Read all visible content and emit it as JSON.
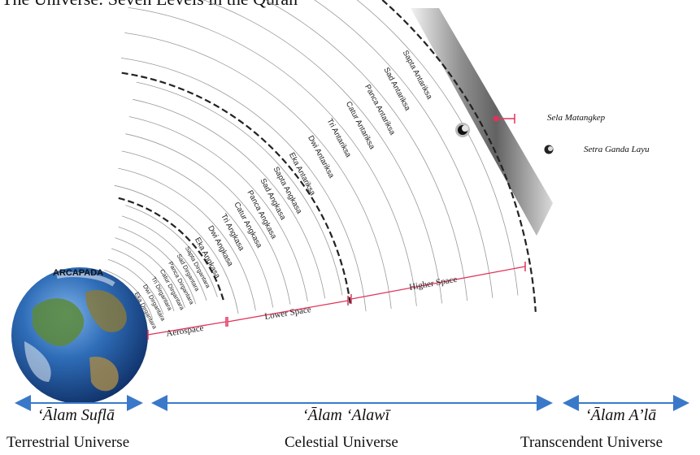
{
  "header": {
    "title_partial": "The Universe: Seven Levels in the Quran"
  },
  "earth": {
    "label": "ARCAPADA"
  },
  "layers": {
    "aerospace": [
      "Eka Dirgantara",
      "Dwi Dirgantara",
      "Tri Dirgantara",
      "Catur Dirgantara",
      "Panca Dirgantara",
      "Sad Dirgantara",
      "Sapta Dirgantara"
    ],
    "lower": [
      "Eka Angkasa",
      "Dwi Angkasa",
      "Tri Angkasa",
      "Catur Angkasa",
      "Panca Angkasa",
      "Sad Angkasa",
      "Sapta Angkasa"
    ],
    "higher": [
      "Eka Antariksa",
      "Dwi Antariksa",
      "Tri Antariksa",
      "Catur Antariksa",
      "Panca Antariksa",
      "Sad Antariksa",
      "Sapta Antariksa"
    ]
  },
  "spans": {
    "aerospace": "Aerospace",
    "lower": "Lower Space",
    "higher": "Higher Space"
  },
  "markers": {
    "sela": "Sela Matangkep",
    "setra": "Setra Ganda Layu"
  },
  "realms": [
    {
      "name": "‘Ālam Suflā",
      "english": "Terrestrial Universe"
    },
    {
      "name": "‘Ālam ‘Alawī",
      "english": "Celestial Universe"
    },
    {
      "name": "‘Ālam A’lā",
      "english": "Transcendent Universe"
    }
  ],
  "colors": {
    "arrow": "#3a79c9",
    "bracket": "#e0335a",
    "arc": "#999999",
    "boundary": "#222222"
  }
}
